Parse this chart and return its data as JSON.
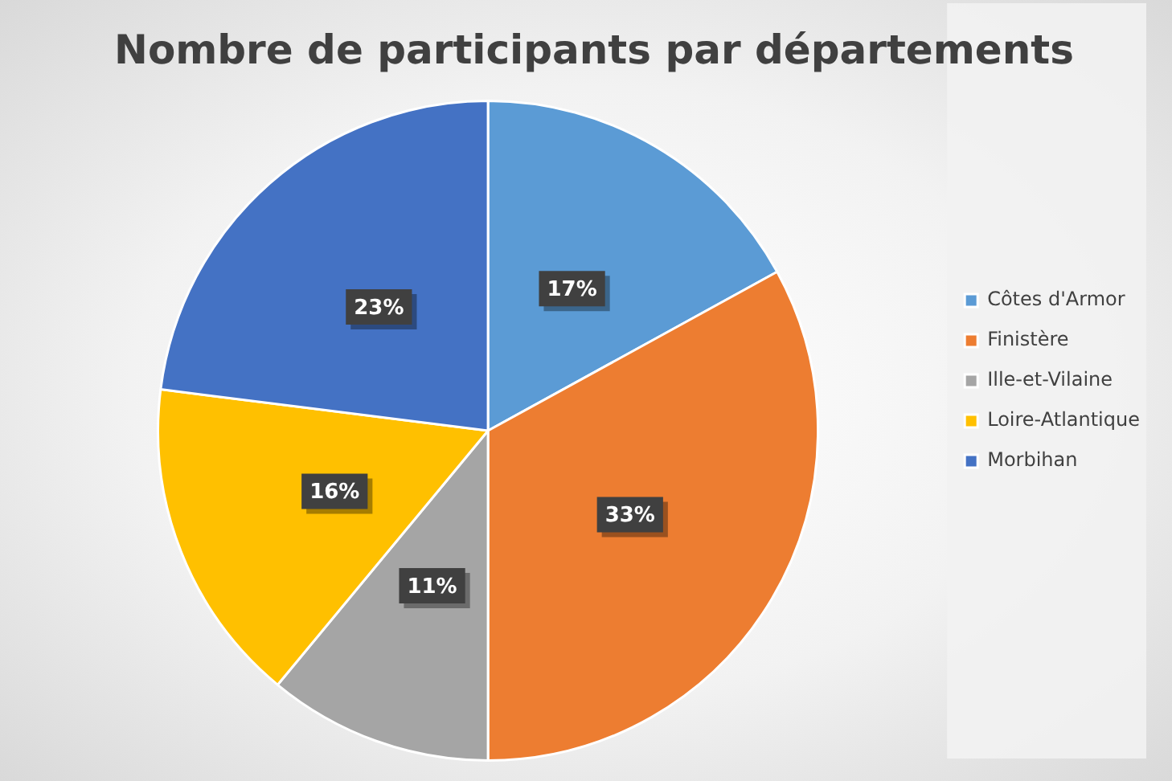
{
  "chart_data": {
    "type": "pie",
    "title": "Nombre de participants par départements",
    "categories": [
      "Côtes d'Armor",
      "Finistère",
      "Ille-et-Vilaine",
      "Loire-Atlantique",
      "Morbihan"
    ],
    "values": [
      17,
      33,
      11,
      16,
      23
    ],
    "colors": [
      "#5b9bd5",
      "#ed7d31",
      "#a5a5a5",
      "#ffc000",
      "#4472c4"
    ],
    "value_labels": [
      "17%",
      "33%",
      "11%",
      "16%",
      "23%"
    ],
    "legend": "right"
  }
}
